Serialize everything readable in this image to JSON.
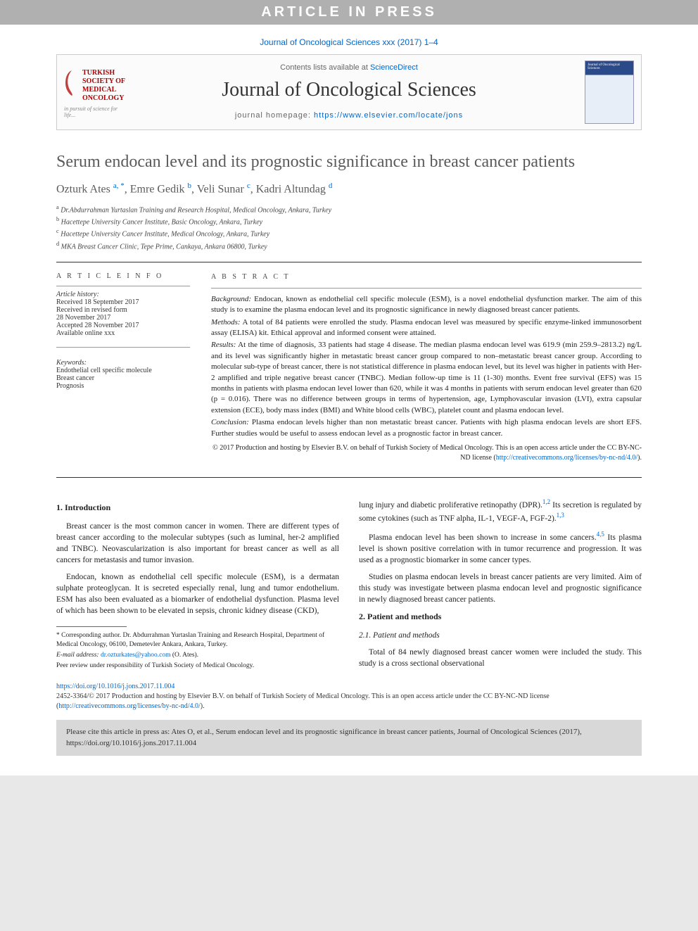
{
  "banner": "ARTICLE IN PRESS",
  "journal_ref": "Journal of Oncological Sciences xxx (2017) 1–4",
  "header": {
    "contents_prefix": "Contents lists available at ",
    "contents_link": "ScienceDirect",
    "journal_name": "Journal of Oncological Sciences",
    "homepage_prefix": "journal homepage: ",
    "homepage_link": "https://www.elsevier.com/locate/jons",
    "society_line1": "TURKISH",
    "society_line2": "SOCIETY OF",
    "society_line3": "MEDICAL",
    "society_line4": "ONCOLOGY",
    "society_tag": "in pursuit of science for life...",
    "thumb_title": "Journal of Oncological Sciences"
  },
  "article": {
    "title": "Serum endocan level and its prognostic significance in breast cancer patients",
    "authors_html": "Ozturk Ates <sup>a, *</sup>, Emre Gedik <sup>b</sup>, Veli Sunar <sup>c</sup>, Kadri Altundag <sup>d</sup>",
    "affiliations": [
      "a Dr.Abdurrahman Yurtaslan Training and Research Hospital, Medical Oncology, Ankara, Turkey",
      "b Hacettepe University Cancer Institute, Basic Oncology, Ankara, Turkey",
      "c Hacettepe University Cancer Institute, Medical Oncology, Ankara, Turkey",
      "d MKA Breast Cancer Clinic, Tepe Prime, Cankaya, Ankara 06800, Turkey"
    ]
  },
  "info": {
    "head": "A R T I C L E   I N F O",
    "history_head": "Article history:",
    "history": [
      "Received 18 September 2017",
      "Received in revised form",
      "28 November 2017",
      "Accepted 28 November 2017",
      "Available online xxx"
    ],
    "kw_head": "Keywords:",
    "keywords": [
      "Endothelial cell specific molecule",
      "Breast cancer",
      "Prognosis"
    ]
  },
  "abstract": {
    "head": "A B S T R A C T",
    "background_label": "Background:",
    "background": " Endocan, known as endothelial cell specific molecule (ESM), is a novel endothelial dysfunction marker. The aim of this study is to examine the plasma endocan level and its prognostic significance in newly diagnosed breast cancer patients.",
    "methods_label": "Methods:",
    "methods": " A total of 84 patients were enrolled the study. Plasma endocan level was measured by specific enzyme-linked immunosorbent assay (ELISA) kit. Ethical approval and informed consent were attained.",
    "results_label": "Results:",
    "results": " At the time of diagnosis, 33 patients had stage 4 disease. The median plasma endocan level was 619.9 (min 259.9–2813.2) ng/L and its level was significantly higher in metastatic breast cancer group compared to non–metastatic breast cancer group. According to molecular sub-type of breast cancer, there is not statistical difference in plasma endocan level, but its level was higher in patients with Her-2 amplified and triple negative breast cancer (TNBC). Median follow-up time is 11 (1-30) months. Event free survival (EFS) was 15 months in patients with plasma endocan level lower than 620, while it was 4 months in patients with serum endocan level greater than 620 (p = 0.016). There was no difference between groups in terms of hypertension, age, Lymphovascular invasion (LVI), extra capsular extension (ECE), body mass index (BMI) and White blood cells (WBC), platelet count and plasma endocan level.",
    "conclusion_label": "Conclusion:",
    "conclusion": " Plasma endocan levels higher than non metastatic breast cancer. Patients with high plasma endocan levels are short EFS. Further studies would be useful to assess endocan level as a prognostic factor in breast cancer.",
    "copyright": "© 2017 Production and hosting by Elsevier B.V. on behalf of Turkish Society of Medical Oncology. This is an open access article under the CC BY-NC-ND license (",
    "cc_link": "http://creativecommons.org/licenses/by-nc-nd/4.0/",
    "copyright_close": ")."
  },
  "body": {
    "s1_head": "1. Introduction",
    "s1_p1": "Breast cancer is the most common cancer in women. There are different types of breast cancer according to the molecular subtypes (such as luminal, her-2 amplified and TNBC). Neovascularization is also important for breast cancer as well as all cancers for metastasis and tumor invasion.",
    "s1_p2": "Endocan, known as endothelial cell specific molecule (ESM), is a dermatan sulphate proteoglycan. It is secreted especially renal, lung and tumor endothelium. ESM has also been evaluated as a biomarker of endothelial dysfunction. Plasma level of which has been shown to be elevated in sepsis, chronic kidney disease (CKD),",
    "s1_p3a": "lung injury and diabetic proliferative retinopathy (DPR).",
    "s1_p3b": " Its secretion is regulated by some cytokines (such as TNF alpha, IL-1, VEGF-A, FGF-2).",
    "s1_p4a": "Plasma endocan level has been shown to increase in some cancers.",
    "s1_p4b": " Its plasma level is shown positive correlation with in tumor recurrence and progression. It was used as a prognostic biomarker in some cancer types.",
    "s1_p5": "Studies on plasma endocan levels in breast cancer patients are very limited. Aim of this study was investigate between plasma endocan level and prognostic significance in newly diagnosed breast cancer patients.",
    "s2_head": "2. Patient and methods",
    "s21_head": "2.1. Patient and methods",
    "s2_p1": "Total of 84 newly diagnosed breast cancer women were included the study. This study is a cross sectional observational",
    "ref12": "1,2",
    "ref13": "1,3",
    "ref45": "4,5"
  },
  "footnotes": {
    "corr": "* Corresponding author. Dr. Abdurrahman Yurtaslan Training and Research Hospital, Department of Medical Oncology, 06100, Demetevler Ankara, Ankara, Turkey.",
    "email_label": "E-mail address: ",
    "email": "dr.ozturkates@yahoo.com",
    "email_who": " (O. Ates).",
    "peer": "Peer review under responsibility of Turkish Society of Medical Oncology."
  },
  "doi": {
    "link": "https://doi.org/10.1016/j.jons.2017.11.004",
    "issn": "2452-3364/© 2017 Production and hosting by Elsevier B.V. on behalf of Turkish Society of Medical Oncology. This is an open access article under the CC BY-NC-ND license (",
    "cc_link": "http://creativecommons.org/licenses/by-nc-nd/4.0/",
    "close": ")."
  },
  "cite": {
    "text": "Please cite this article in press as: Ates O, et al., Serum endocan level and its prognostic significance in breast cancer patients, Journal of Oncological Sciences (2017), ",
    "link": "https://doi.org/10.1016/j.jons.2017.11.004"
  },
  "colors": {
    "banner_bg": "#b0b0b0",
    "link": "#0066cc",
    "text": "#222222",
    "citebox_bg": "#d8d8d8"
  }
}
